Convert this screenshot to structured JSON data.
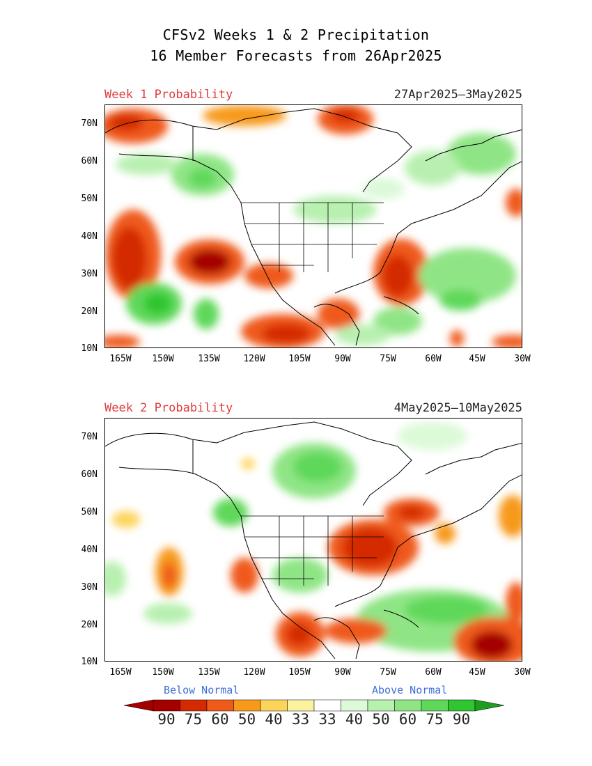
{
  "title": {
    "line1": "CFSv2 Weeks 1 & 2 Precipitation",
    "line2": "16 Member Forecasts from 26Apr2025"
  },
  "panels": [
    {
      "label": "Week 1 Probability",
      "date_range": "27Apr2025—3May2025"
    },
    {
      "label": "Week 2 Probability",
      "date_range": "4May2025—10May2025"
    }
  ],
  "axes": {
    "lat_labels": [
      "70N",
      "60N",
      "50N",
      "40N",
      "30N",
      "20N",
      "10N"
    ],
    "lon_labels": [
      "165W",
      "150W",
      "135W",
      "120W",
      "105W",
      "90W",
      "75W",
      "60W",
      "45W",
      "30W"
    ]
  },
  "legend": {
    "below_label": "Below Normal",
    "above_label": "Above Normal",
    "values": [
      "90",
      "75",
      "60",
      "50",
      "40",
      "33",
      "33",
      "40",
      "50",
      "60",
      "75",
      "90"
    ],
    "colors": [
      "#a50000",
      "#d42a00",
      "#ef5a1a",
      "#f79a1a",
      "#fcd45a",
      "#fcf3a0",
      "#ffffff",
      "#dcf9d8",
      "#b8f0b0",
      "#8fe585",
      "#5fd85a",
      "#2fc62f"
    ],
    "below_arrow_color": "#a50000",
    "above_arrow_color": "#1e9e1e"
  }
}
